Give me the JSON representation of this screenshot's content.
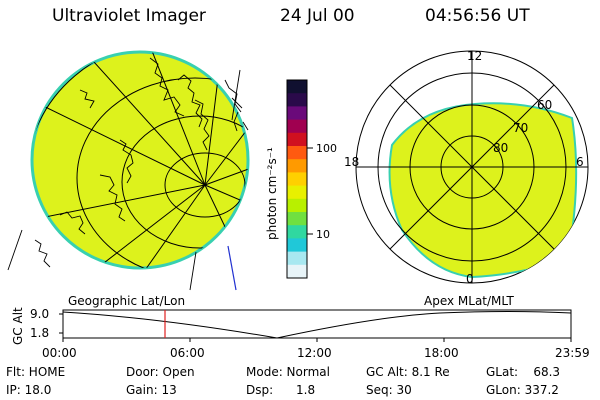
{
  "header": {
    "instrument": "Ultraviolet Imager",
    "date": "24 Jul 00",
    "time": "04:56:56 UT"
  },
  "colorbar": {
    "unit_label": "photon cm⁻²s⁻¹",
    "ticks": [
      "100",
      "10"
    ],
    "colors": [
      "#101030",
      "#2a0a4a",
      "#6a0a7a",
      "#a00050",
      "#d01020",
      "#ff5a10",
      "#ff9a00",
      "#ffd000",
      "#e8f000",
      "#b8f000",
      "#70e040",
      "#30d8a0",
      "#20c8d8",
      "#a8e8f0",
      "#e8f4f8"
    ]
  },
  "geo_panel": {
    "label": "Geographic Lat/Lon",
    "fill_color": "#ddf21c",
    "edge_color": "#38d0b0"
  },
  "polar_panel": {
    "label": "Apex MLat/MLT",
    "mlt_labels": {
      "top": "12",
      "left": "18",
      "right": "6",
      "bottom": "0"
    },
    "lat_labels": [
      "60",
      "70",
      "80"
    ]
  },
  "altitude_plot": {
    "ylabel": "GC Alt",
    "yticks": [
      "9.0",
      "1.8"
    ],
    "xticks": [
      "00:00",
      "06:00",
      "12:00",
      "18:00",
      "23:59"
    ],
    "marker_color": "#e02020"
  },
  "info": {
    "flt": "Flt: HOME",
    "ip": "IP: 18.0",
    "door": "Door: Open",
    "gain": "Gain: 13",
    "mode": "Mode: Normal",
    "dsp": "Dsp:      1.8",
    "gc_alt": "GC Alt: 8.1 Re",
    "seq": "Seq: 30",
    "glat": "GLat:    68.3",
    "glon": "GLon: 337.2"
  }
}
